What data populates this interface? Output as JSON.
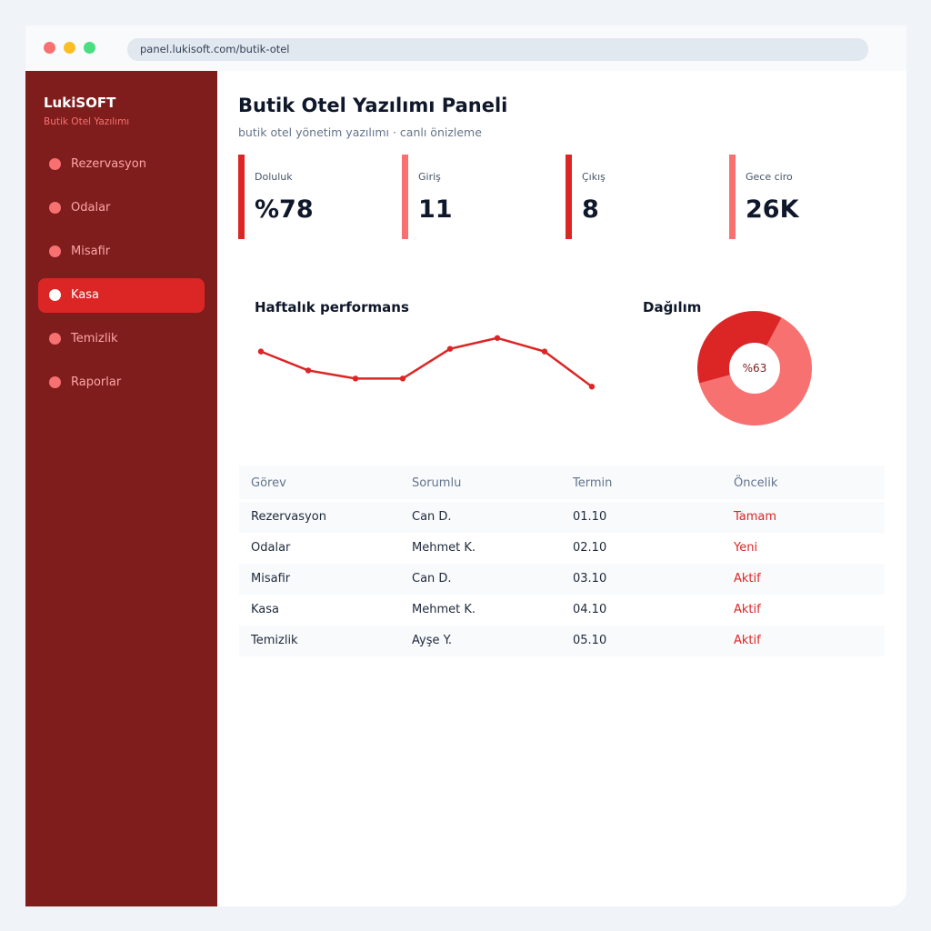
{
  "browser": {
    "url": "panel.lukisoft.com/butik-otel"
  },
  "sidebar": {
    "brand": "LukiSOFT",
    "brand_subtitle": "Butik Otel Yazılımı",
    "items": [
      {
        "label": "Rezervasyon",
        "active": false
      },
      {
        "label": "Odalar",
        "active": false
      },
      {
        "label": "Misafir",
        "active": false
      },
      {
        "label": "Kasa",
        "active": true
      },
      {
        "label": "Temizlik",
        "active": false
      },
      {
        "label": "Raporlar",
        "active": false
      }
    ]
  },
  "header": {
    "title": "Butik Otel Yazılımı Paneli",
    "subtitle": "butik otel yönetim yazılımı · canlı önizleme"
  },
  "kpis": [
    {
      "label": "Doluluk",
      "value": "%78"
    },
    {
      "label": "Giriş",
      "value": "11"
    },
    {
      "label": "Çıkış",
      "value": "8"
    },
    {
      "label": "Gece ciro",
      "value": "26K"
    }
  ],
  "weekly": {
    "title": "Haftalık performans",
    "chart_data": {
      "type": "line",
      "values": [
        62,
        55,
        52,
        52,
        63,
        67,
        62,
        49
      ]
    }
  },
  "distribution": {
    "title": "Dağılım",
    "center_label": "%63",
    "chart_data": {
      "type": "pie",
      "values": [
        63,
        37
      ],
      "colors": [
        "#f87171",
        "#dc2626"
      ]
    }
  },
  "table": {
    "headers": [
      "Görev",
      "Sorumlu",
      "Termin",
      "Öncelik"
    ],
    "rows": [
      [
        "Rezervasyon",
        "Can D.",
        "01.10",
        "Tamam"
      ],
      [
        "Odalar",
        "Mehmet K.",
        "02.10",
        "Yeni"
      ],
      [
        "Misafir",
        "Can D.",
        "03.10",
        "Aktif"
      ],
      [
        "Kasa",
        "Mehmet K.",
        "04.10",
        "Aktif"
      ],
      [
        "Temizlik",
        "Ayşe Y.",
        "05.10",
        "Aktif"
      ]
    ]
  },
  "colors": {
    "accent": "#dc2626",
    "accent_light": "#f87171",
    "sidebar_bg": "#7f1d1d"
  }
}
